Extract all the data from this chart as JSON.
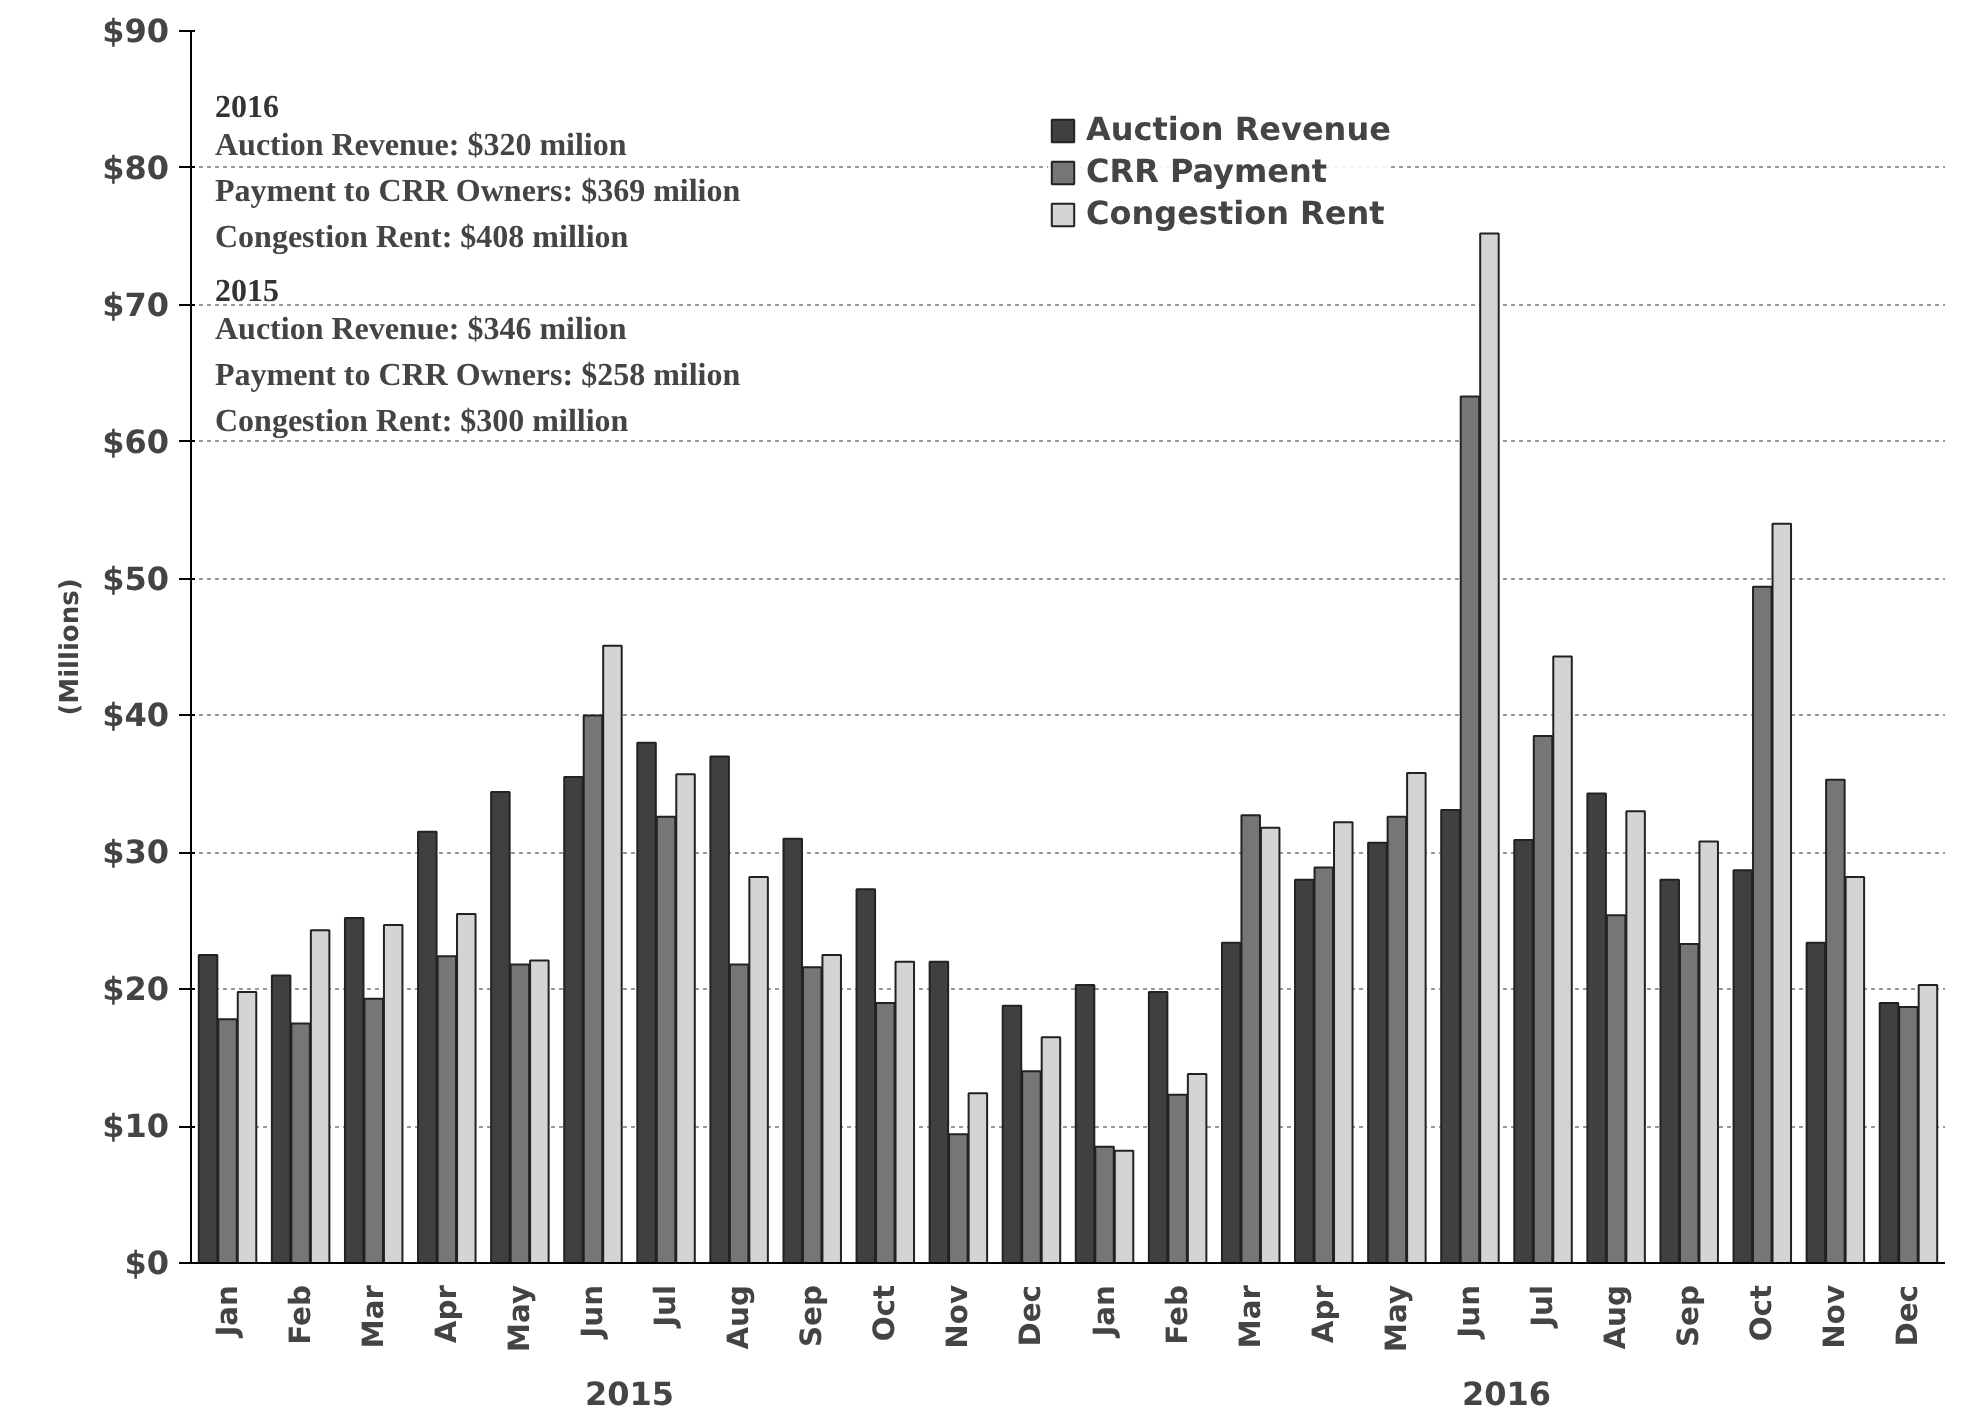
{
  "chart_data": {
    "type": "bar",
    "ylabel": "(Millions)",
    "categories": [
      "Jan",
      "Feb",
      "Mar",
      "Apr",
      "May",
      "Jun",
      "Jul",
      "Aug",
      "Sep",
      "Oct",
      "Nov",
      "Dec",
      "Jan",
      "Feb",
      "Mar",
      "Apr",
      "May",
      "Jun",
      "Jul",
      "Aug",
      "Sep",
      "Oct",
      "Nov",
      "Dec"
    ],
    "series": [
      {
        "name": "Auction Revenue",
        "color": "#404040",
        "values": [
          22.5,
          21,
          25.2,
          31.5,
          34.4,
          35.5,
          38,
          37,
          31,
          27.3,
          22,
          18.8,
          20.3,
          19.8,
          23.4,
          28,
          30.7,
          33.1,
          30.9,
          34.3,
          28,
          28.7,
          23.4,
          19
        ]
      },
      {
        "name": "CRR Payment",
        "color": "#767676",
        "values": [
          17.8,
          17.5,
          19.3,
          22.4,
          21.8,
          40,
          32.6,
          21.8,
          21.6,
          19,
          9.4,
          14,
          8.5,
          12.3,
          32.7,
          28.9,
          32.6,
          63.3,
          38.5,
          25.4,
          23.3,
          49.4,
          35.3,
          18.7
        ]
      },
      {
        "name": "Congestion Rent",
        "color": "#d4d4d4",
        "values": [
          19.8,
          24.3,
          24.7,
          25.5,
          22.1,
          45.1,
          35.7,
          28.2,
          22.5,
          22,
          12.4,
          16.5,
          8.2,
          13.8,
          31.8,
          32.2,
          35.8,
          75.2,
          44.3,
          33,
          30.8,
          54,
          28.2,
          20.3
        ]
      }
    ],
    "ylim": [
      0,
      90
    ],
    "yticks": [
      {
        "value": 0,
        "label": "$0"
      },
      {
        "value": 10,
        "label": "$10"
      },
      {
        "value": 20,
        "label": "$20"
      },
      {
        "value": 30,
        "label": "$30"
      },
      {
        "value": 40,
        "label": "$40"
      },
      {
        "value": 50,
        "label": "$50"
      },
      {
        "value": 60,
        "label": "$60"
      },
      {
        "value": 70,
        "label": "$70"
      },
      {
        "value": 80,
        "label": "$80"
      },
      {
        "value": 90,
        "label": "$90"
      }
    ],
    "grid": "y",
    "legend": "top",
    "annotations": [
      "2016",
      "Auction Revenue: $320 milion",
      "Payment to CRR Owners: $369 milion",
      "Congestion Rent: $408 million",
      "2015",
      "Auction Revenue: $346 milion",
      "Payment to CRR Owners: $258 milion",
      "Congestion Rent: $300 million",
      "2015",
      "2016"
    ]
  }
}
